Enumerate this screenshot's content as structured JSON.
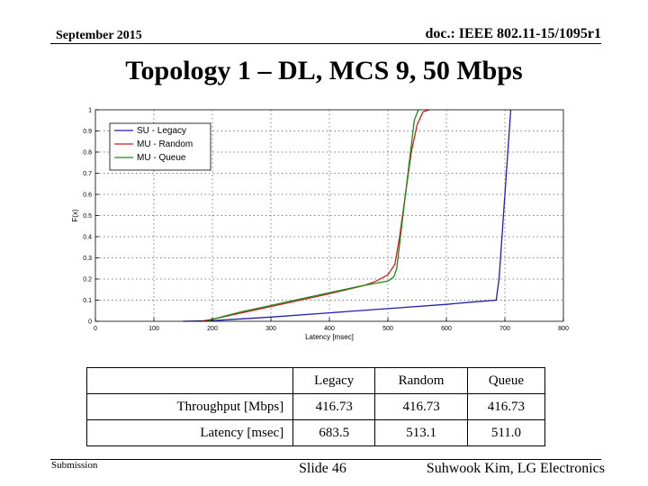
{
  "header": {
    "date": "September 2015",
    "doc_id": "doc.: IEEE 802.11-15/1095r1"
  },
  "title": "Topology 1 – DL, MCS 9, 50 Mbps",
  "chart_data": {
    "type": "line",
    "xlabel": "Latency [msec]",
    "ylabel": "F(x)",
    "xlim": [
      0,
      800
    ],
    "ylim": [
      0,
      1
    ],
    "xticks": [
      0,
      100,
      200,
      300,
      400,
      500,
      600,
      700,
      800
    ],
    "yticks": [
      0,
      0.1,
      0.2,
      0.3,
      0.4,
      0.5,
      0.6,
      0.7,
      0.8,
      0.9,
      1
    ],
    "grid": true,
    "legend_position": "top-left",
    "series": [
      {
        "name": "SU - Legacy",
        "color": "#1f1fb4",
        "x": [
          150,
          200,
          300,
          400,
          500,
          600,
          640,
          685,
          690,
          700,
          710
        ],
        "y": [
          0,
          0.003,
          0.02,
          0.04,
          0.06,
          0.08,
          0.09,
          0.1,
          0.2,
          0.6,
          1.0
        ]
      },
      {
        "name": "MU - Random",
        "color": "#d01c1c",
        "x": [
          180,
          200,
          250,
          300,
          350,
          400,
          430,
          460,
          480,
          500,
          512,
          520,
          530,
          540,
          550,
          560,
          570
        ],
        "y": [
          0,
          0.01,
          0.04,
          0.07,
          0.1,
          0.13,
          0.15,
          0.17,
          0.19,
          0.22,
          0.27,
          0.4,
          0.6,
          0.8,
          0.93,
          0.99,
          1.0
        ]
      },
      {
        "name": "MU - Queue",
        "color": "#1b8a1b",
        "x": [
          190,
          200,
          250,
          300,
          350,
          400,
          450,
          500,
          510,
          515,
          530,
          545,
          552
        ],
        "y": [
          0,
          0.01,
          0.045,
          0.075,
          0.105,
          0.135,
          0.165,
          0.19,
          0.21,
          0.25,
          0.6,
          0.95,
          1.0
        ]
      }
    ]
  },
  "table": {
    "header": [
      "",
      "Legacy",
      "Random",
      "Queue"
    ],
    "rows": [
      [
        "Throughput [Mbps]",
        "416.73",
        "416.73",
        "416.73"
      ],
      [
        "Latency [msec]",
        "683.5",
        "513.1",
        "511.0"
      ]
    ]
  },
  "footer": {
    "submission": "Submission",
    "slide": "Slide 46",
    "author": "Suhwook Kim, LG Electronics"
  }
}
